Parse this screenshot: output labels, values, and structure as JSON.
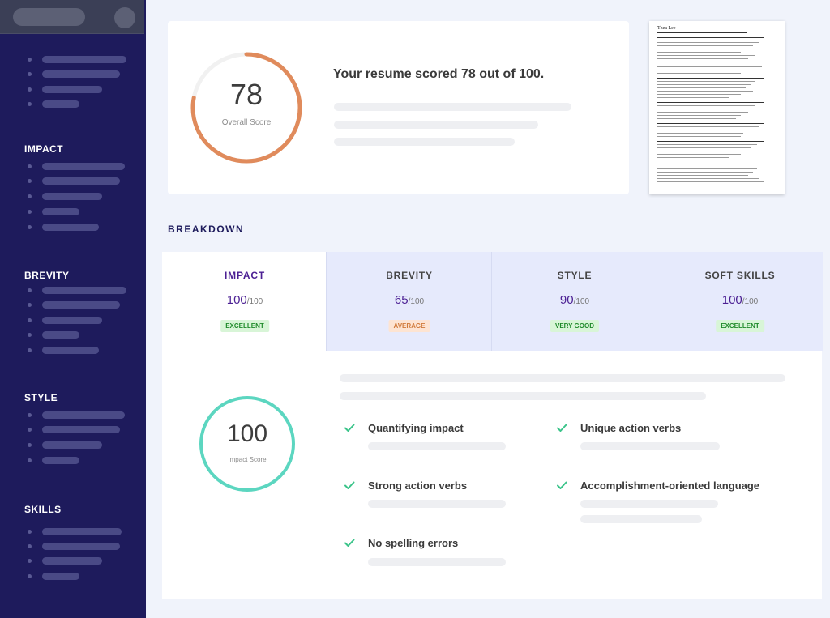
{
  "sidebar": {
    "sections": [
      {
        "heading": "IMPACT"
      },
      {
        "heading": "BREVITY"
      },
      {
        "heading": "STYLE"
      },
      {
        "heading": "SKILLS"
      }
    ]
  },
  "score_card": {
    "score": "78",
    "score_label": "Overall Score",
    "score_fraction": 0.78,
    "headline": "Your resume scored 78 out of 100."
  },
  "resume": {
    "name": "Thea Lee"
  },
  "breakdown": {
    "title": "BREAKDOWN",
    "tabs": [
      {
        "name": "IMPACT",
        "score": "100",
        "max": "/100",
        "badge": "EXCELLENT"
      },
      {
        "name": "BREVITY",
        "score": "65",
        "max": "/100",
        "badge": "AVERAGE"
      },
      {
        "name": "STYLE",
        "score": "90",
        "max": "/100",
        "badge": "VERY GOOD"
      },
      {
        "name": "SOFT SKILLS",
        "score": "100",
        "max": "/100",
        "badge": "EXCELLENT"
      }
    ]
  },
  "impact_panel": {
    "score": "100",
    "score_label": "Impact Score",
    "checks": [
      {
        "label": "Quantifying impact"
      },
      {
        "label": "Unique action verbs"
      },
      {
        "label": "Strong action verbs"
      },
      {
        "label": "Accomplishment-oriented language"
      },
      {
        "label": "No spelling errors"
      }
    ]
  },
  "colors": {
    "sidebar": "#1e1b5c",
    "accent_purple": "#4b1f93",
    "ring_orange": "#e08b5c",
    "ring_teal": "#5cd6c0",
    "check_green": "#3bc48a"
  }
}
